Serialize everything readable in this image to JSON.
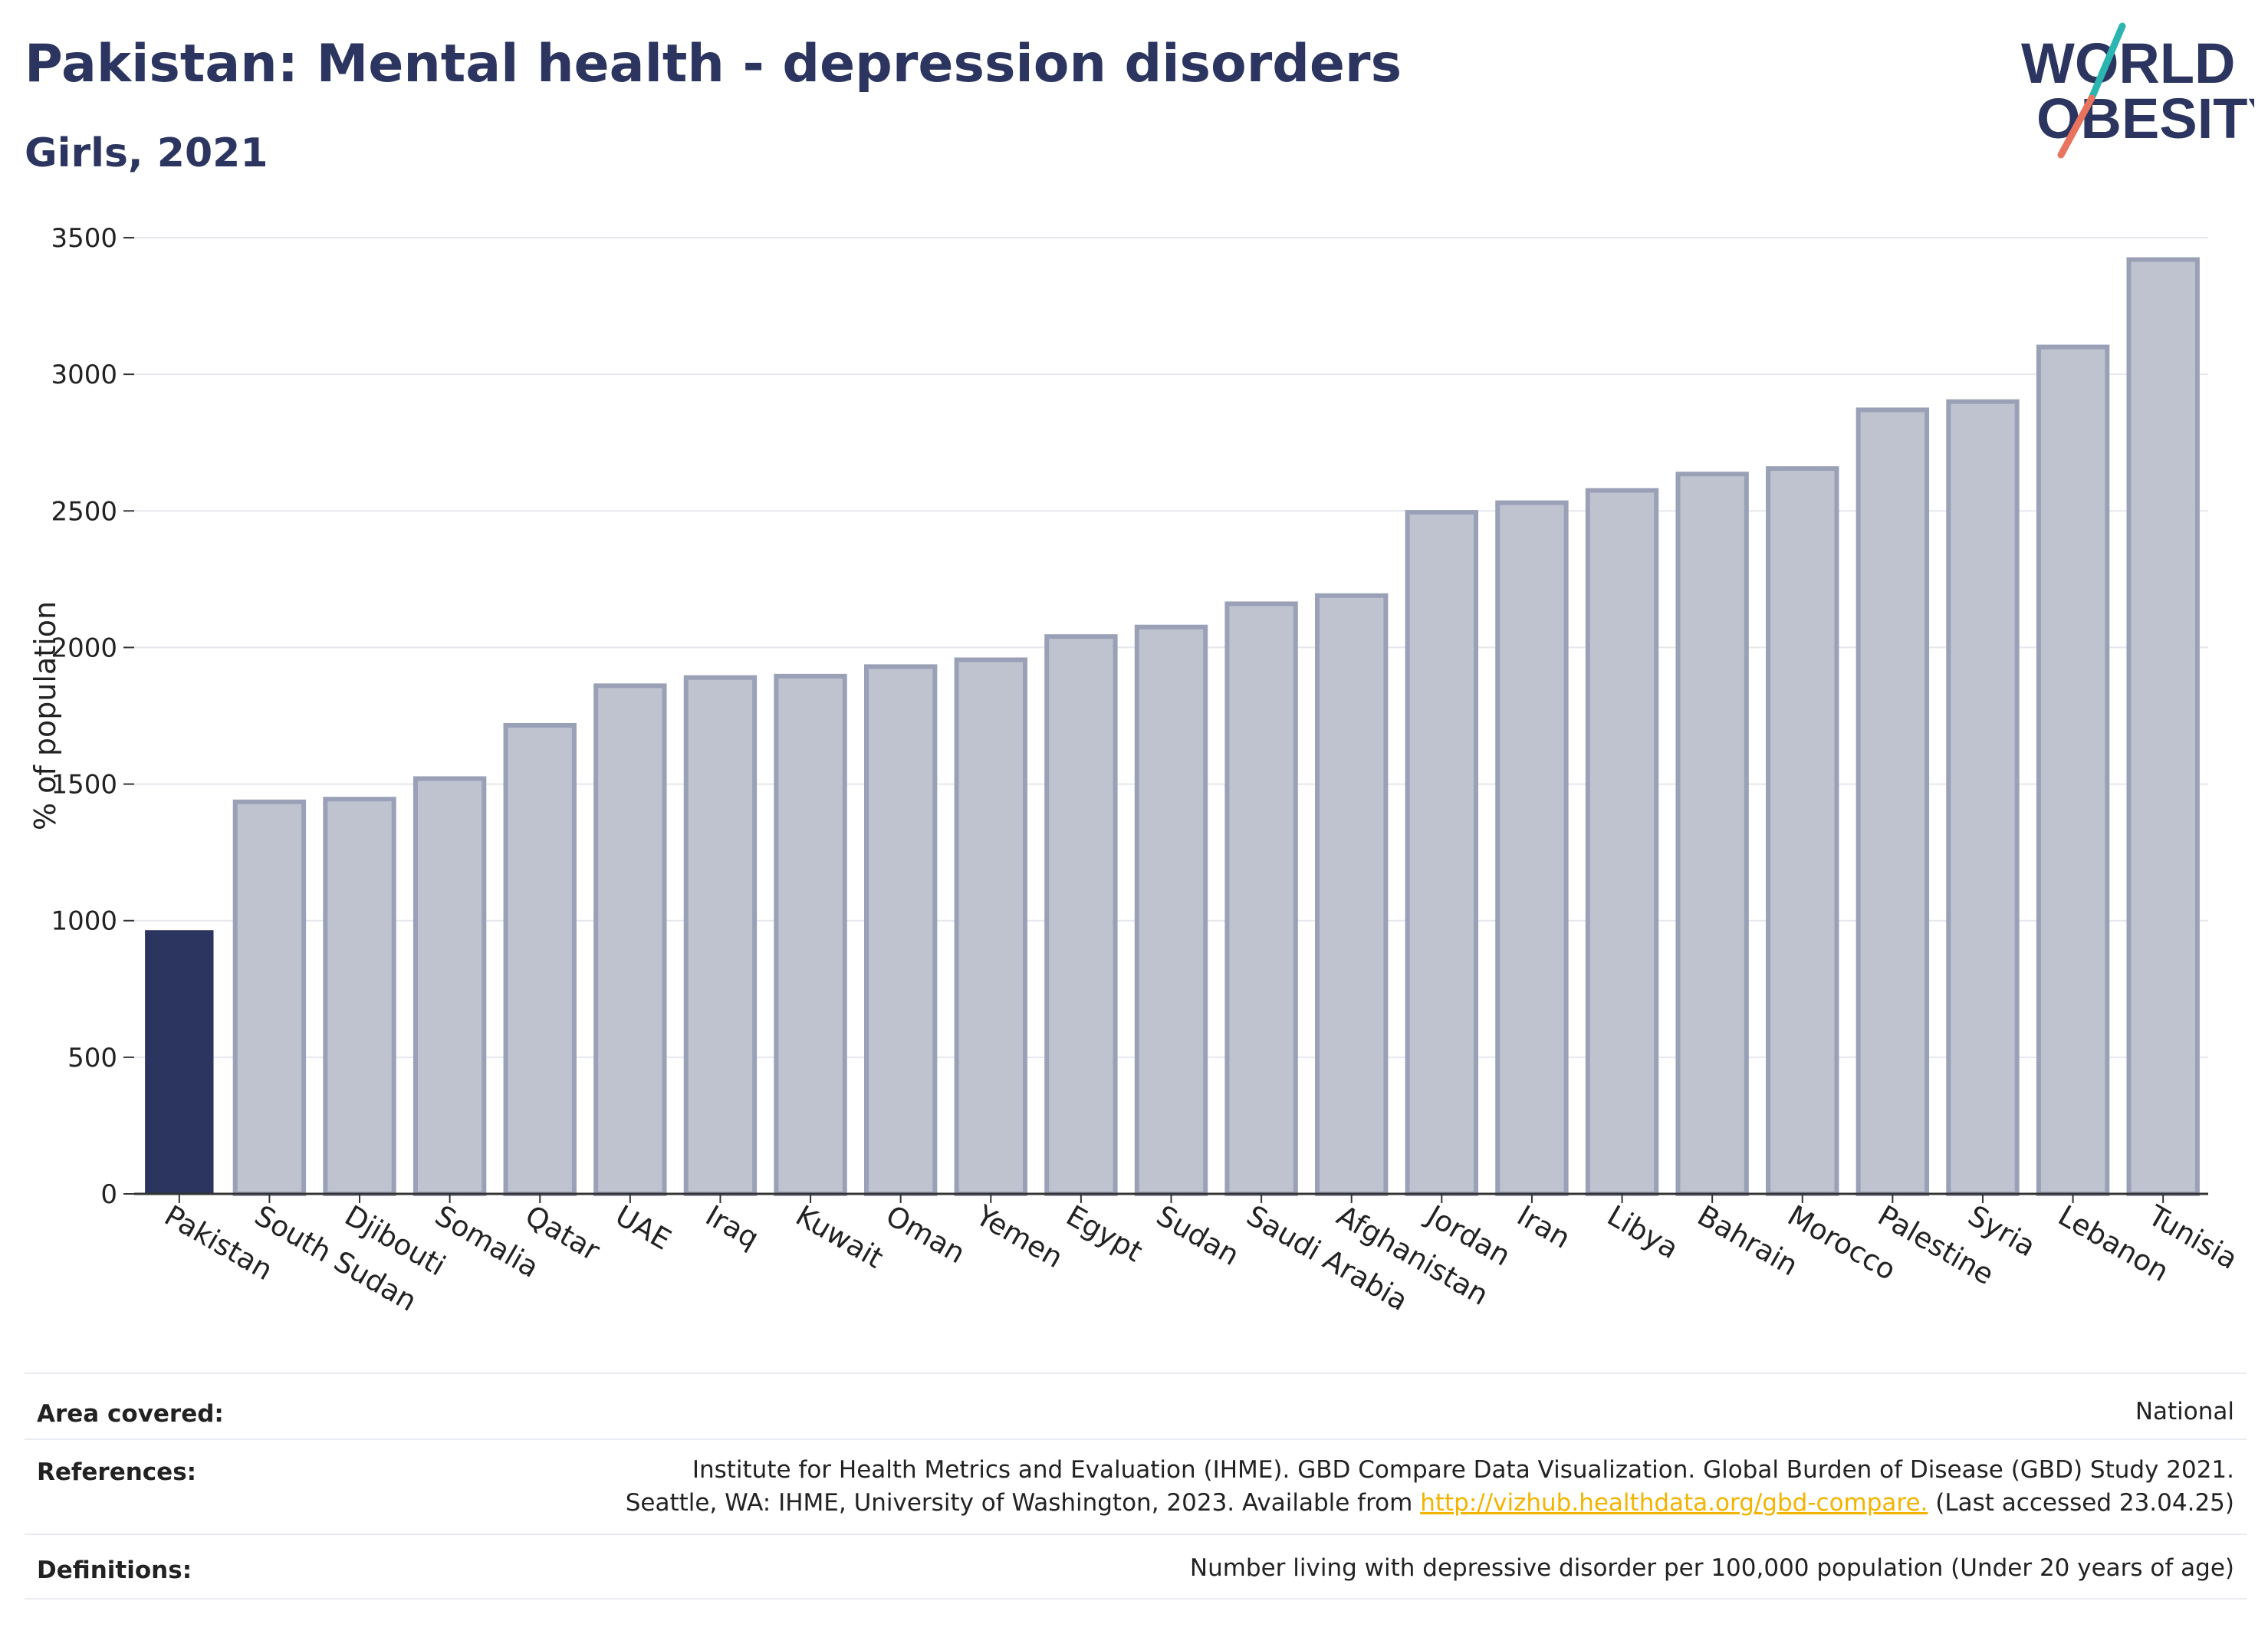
{
  "header": {
    "title": "Pakistan: Mental health - depression disorders",
    "subtitle": "Girls, 2021"
  },
  "logo": {
    "line1": "WORLD",
    "line2": "OBESITY"
  },
  "colors": {
    "highlight": "#2b3560",
    "bar_fill": "#bfc3d0",
    "bar_stroke": "#9aa1b7",
    "grid": "#e6e8ee",
    "logo_teal": "#2bb5b0",
    "logo_coral": "#e8735f"
  },
  "chart_data": {
    "type": "bar",
    "ylabel": "% of population",
    "ylim": [
      0,
      3500
    ],
    "yticks": [
      0,
      500,
      1000,
      1500,
      2000,
      2500,
      3000,
      3500
    ],
    "grid": true,
    "highlight": "Pakistan",
    "categories": [
      "Pakistan",
      "South Sudan",
      "Djibouti",
      "Somalia",
      "Qatar",
      "UAE",
      "Iraq",
      "Kuwait",
      "Oman",
      "Yemen",
      "Egypt",
      "Sudan",
      "Saudi Arabia",
      "Afghanistan",
      "Jordan",
      "Iran",
      "Libya",
      "Bahrain",
      "Morocco",
      "Palestine",
      "Syria",
      "Lebanon",
      "Tunisia"
    ],
    "values": [
      965,
      1435,
      1445,
      1520,
      1715,
      1860,
      1890,
      1895,
      1930,
      1955,
      2040,
      2075,
      2160,
      2190,
      2495,
      2530,
      2575,
      2635,
      2655,
      2870,
      2900,
      3100,
      3420
    ]
  },
  "meta": {
    "area_label": "Area covered:",
    "area_value": "National",
    "references_label": "References:",
    "references_line1": "Institute for Health Metrics and Evaluation (IHME). GBD Compare Data Visualization. Global Burden of Disease (GBD) Study 2021.",
    "references_line2_prefix": "Seattle, WA: IHME, University of Washington, 2023. Available from ",
    "references_link": "http://vizhub.healthdata.org/gbd-compare.",
    "references_line2_suffix": " (Last accessed 23.04.25)",
    "definitions_label": "Definitions:",
    "definitions_value": "Number living with depressive disorder per 100,000 population (Under 20 years of age)"
  }
}
